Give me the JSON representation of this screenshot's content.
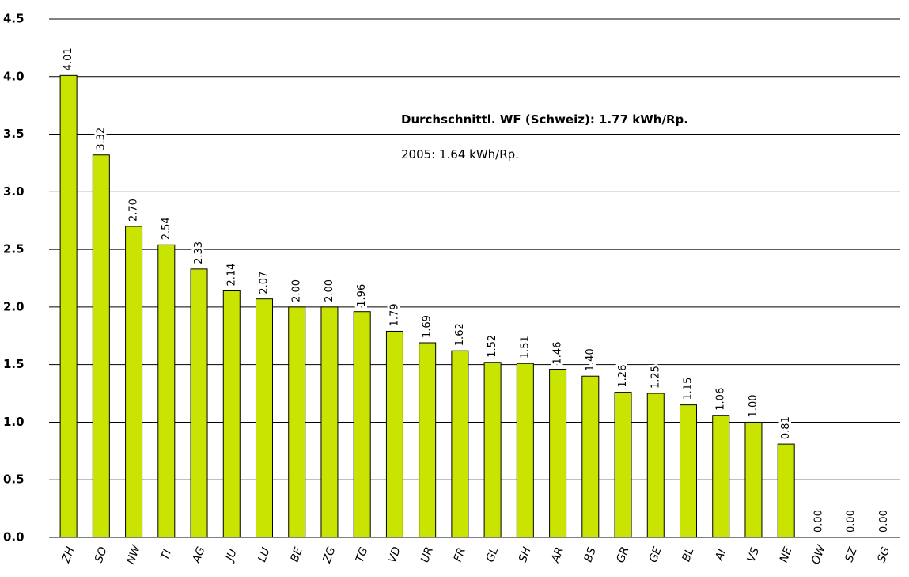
{
  "chart_data": {
    "type": "bar",
    "categories": [
      "ZH",
      "SO",
      "NW",
      "TI",
      "AG",
      "JU",
      "LU",
      "BE",
      "ZG",
      "TG",
      "VD",
      "UR",
      "FR",
      "GL",
      "SH",
      "AR",
      "BS",
      "GR",
      "GE",
      "BL",
      "AI",
      "VS",
      "NE",
      "OW",
      "SZ",
      "SG"
    ],
    "values": [
      4.01,
      3.32,
      2.7,
      2.54,
      2.33,
      2.14,
      2.07,
      2.0,
      2.0,
      1.96,
      1.79,
      1.69,
      1.62,
      1.52,
      1.51,
      1.46,
      1.4,
      1.26,
      1.25,
      1.15,
      1.06,
      1.0,
      0.81,
      0,
      0,
      0
    ],
    "value_labels": [
      "4.01",
      "3.32",
      "2.70",
      "2.54",
      "2.33",
      "2.14",
      "2.07",
      "2.00",
      "2.00",
      "1.96",
      "1.79",
      "1.69",
      "1.62",
      "1.52",
      "1.51",
      "1.46",
      "1.40",
      "1.26",
      "1.25",
      "1.15",
      "1.06",
      "1.00",
      "0.81",
      "0.00",
      "0.00",
      "0.00"
    ],
    "color": "#c8e400",
    "ylim": [
      0,
      4.5
    ],
    "yticks": [
      {
        "value": 0,
        "label": "0.0"
      },
      0.5,
      {
        "value": 1,
        "label": "1.0"
      },
      1.5,
      {
        "value": 2,
        "label": "2.0"
      },
      2.5,
      {
        "value": 3,
        "label": "3.0"
      },
      3.5,
      {
        "value": 4,
        "label": "4.0"
      },
      4.5
    ],
    "grid": true,
    "annotations": [
      "Durchschnittl. WF (Schweiz): 1.77 kWh/Rp.",
      "2005: 1.64 kWh/Rp."
    ]
  }
}
